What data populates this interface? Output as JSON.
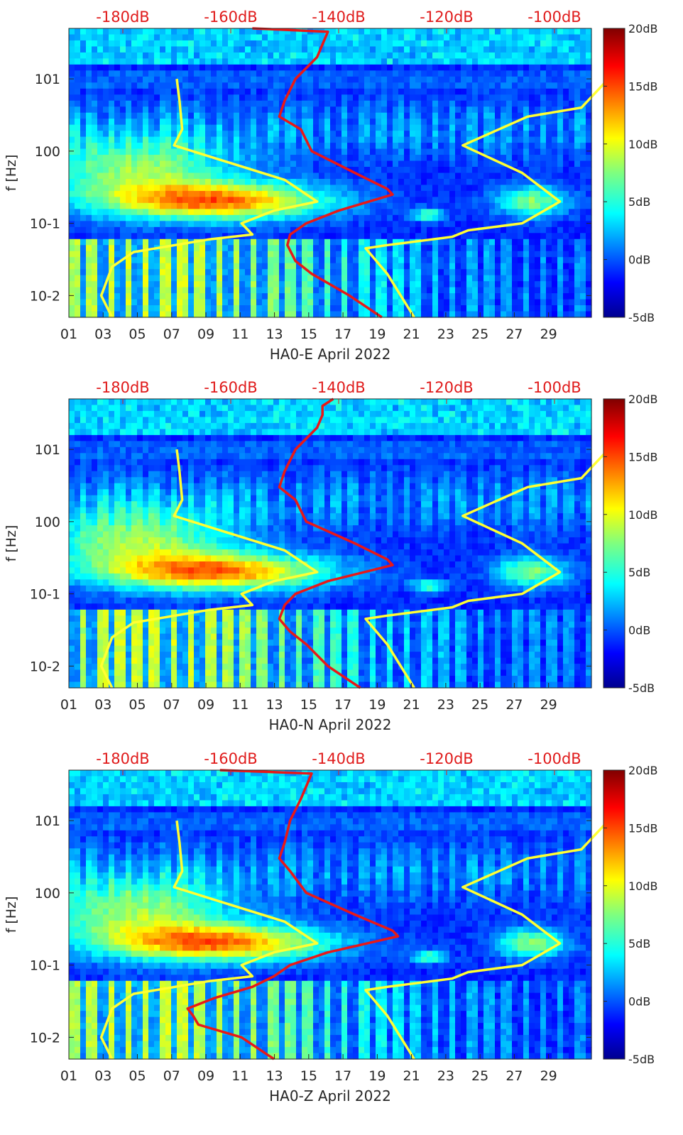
{
  "chart_data": [
    {
      "type": "heatmap",
      "xlabel": "HA0-E April 2022",
      "ylabel": "f [Hz]",
      "x_ticks": [
        "01",
        "03",
        "05",
        "07",
        "09",
        "11",
        "13",
        "15",
        "17",
        "19",
        "21",
        "23",
        "25",
        "27",
        "29"
      ],
      "y_ticks": [
        "10-2",
        "10-1",
        "100",
        "101"
      ],
      "top_axis_ticks": [
        "-180dB",
        "-160dB",
        "-140dB",
        "-120dB",
        "-100dB"
      ],
      "colorbar_ticks": [
        "20dB",
        "15dB",
        "10dB",
        "5dB",
        "0dB",
        "-5dB"
      ],
      "colorbar_range": [
        -5,
        20
      ],
      "ylim_hz": [
        0.005,
        50
      ],
      "red_curve_dB": [
        [
          50,
          -156
        ],
        [
          45,
          -142
        ],
        [
          30,
          -143
        ],
        [
          20,
          -144
        ],
        [
          10,
          -148
        ],
        [
          5,
          -150
        ],
        [
          3,
          -151
        ],
        [
          2,
          -147
        ],
        [
          1,
          -145
        ],
        [
          0.5,
          -137
        ],
        [
          0.3,
          -131
        ],
        [
          0.25,
          -130
        ],
        [
          0.15,
          -140
        ],
        [
          0.1,
          -146
        ],
        [
          0.07,
          -149
        ],
        [
          0.05,
          -149.5
        ],
        [
          0.03,
          -148
        ],
        [
          0.02,
          -145
        ],
        [
          0.01,
          -138
        ],
        [
          0.005,
          -132
        ]
      ],
      "yellow_curves_dB": [
        [
          [
            10,
            -170
          ],
          [
            5,
            -169.5
          ],
          [
            2,
            -169
          ],
          [
            1.2,
            -170.5
          ],
          [
            0.8,
            -163
          ],
          [
            0.4,
            -150
          ],
          [
            0.2,
            -144
          ],
          [
            0.15,
            -152
          ],
          [
            0.1,
            -158
          ],
          [
            0.07,
            -156
          ],
          [
            0.06,
            -164
          ],
          [
            0.04,
            -178
          ],
          [
            0.025,
            -182
          ],
          [
            0.01,
            -184
          ],
          [
            0.005,
            -182
          ]
        ],
        [
          [
            10,
            -90
          ],
          [
            4,
            -95
          ],
          [
            3,
            -105
          ],
          [
            1.2,
            -117
          ],
          [
            0.5,
            -106
          ],
          [
            0.2,
            -99
          ],
          [
            0.1,
            -106
          ],
          [
            0.08,
            -116
          ],
          [
            0.065,
            -119
          ],
          [
            0.05,
            -131
          ],
          [
            0.045,
            -135
          ],
          [
            0.02,
            -131
          ],
          [
            0.005,
            -126
          ]
        ]
      ]
    },
    {
      "type": "heatmap",
      "xlabel": "HA0-N April 2022",
      "ylabel": "f [Hz]",
      "x_ticks": [
        "01",
        "03",
        "05",
        "07",
        "09",
        "11",
        "13",
        "15",
        "17",
        "19",
        "21",
        "23",
        "25",
        "27",
        "29"
      ],
      "y_ticks": [
        "10-2",
        "10-1",
        "100",
        "101"
      ],
      "top_axis_ticks": [
        "-180dB",
        "-160dB",
        "-140dB",
        "-120dB",
        "-100dB"
      ],
      "colorbar_ticks": [
        "20dB",
        "15dB",
        "10dB",
        "5dB",
        "0dB",
        "-5dB"
      ],
      "colorbar_range": [
        -5,
        20
      ],
      "ylim_hz": [
        0.005,
        50
      ],
      "red_curve_dB": [
        [
          50,
          -141
        ],
        [
          40,
          -143
        ],
        [
          30,
          -143
        ],
        [
          20,
          -144
        ],
        [
          10,
          -148
        ],
        [
          5,
          -150
        ],
        [
          3,
          -151
        ],
        [
          2,
          -148
        ],
        [
          1,
          -146
        ],
        [
          0.5,
          -137
        ],
        [
          0.3,
          -131
        ],
        [
          0.25,
          -130
        ],
        [
          0.15,
          -142
        ],
        [
          0.1,
          -148
        ],
        [
          0.07,
          -150
        ],
        [
          0.045,
          -151
        ],
        [
          0.03,
          -149
        ],
        [
          0.02,
          -146
        ],
        [
          0.01,
          -142
        ],
        [
          0.005,
          -136
        ]
      ],
      "yellow_curves_dB": [
        [
          [
            10,
            -170
          ],
          [
            5,
            -169.5
          ],
          [
            2,
            -169
          ],
          [
            1.2,
            -170.5
          ],
          [
            0.8,
            -163
          ],
          [
            0.4,
            -150
          ],
          [
            0.2,
            -144
          ],
          [
            0.15,
            -152
          ],
          [
            0.1,
            -158
          ],
          [
            0.07,
            -156
          ],
          [
            0.06,
            -164
          ],
          [
            0.04,
            -178
          ],
          [
            0.025,
            -182
          ],
          [
            0.01,
            -184
          ],
          [
            0.005,
            -182
          ]
        ],
        [
          [
            10,
            -90
          ],
          [
            4,
            -95
          ],
          [
            3,
            -105
          ],
          [
            1.2,
            -117
          ],
          [
            0.5,
            -106
          ],
          [
            0.2,
            -99
          ],
          [
            0.1,
            -106
          ],
          [
            0.08,
            -116
          ],
          [
            0.065,
            -119
          ],
          [
            0.05,
            -131
          ],
          [
            0.045,
            -135
          ],
          [
            0.02,
            -131
          ],
          [
            0.005,
            -126
          ]
        ]
      ]
    },
    {
      "type": "heatmap",
      "xlabel": "HA0-Z April 2022",
      "ylabel": "f [Hz]",
      "x_ticks": [
        "01",
        "03",
        "05",
        "07",
        "09",
        "11",
        "13",
        "15",
        "17",
        "19",
        "21",
        "23",
        "25",
        "27",
        "29"
      ],
      "y_ticks": [
        "10-2",
        "10-1",
        "100",
        "101"
      ],
      "top_axis_ticks": [
        "-180dB",
        "-160dB",
        "-140dB",
        "-120dB",
        "-100dB"
      ],
      "colorbar_ticks": [
        "20dB",
        "15dB",
        "10dB",
        "5dB",
        "0dB",
        "-5dB"
      ],
      "colorbar_range": [
        -5,
        20
      ],
      "ylim_hz": [
        0.005,
        50
      ],
      "red_curve_dB": [
        [
          50,
          -162
        ],
        [
          45,
          -145
        ],
        [
          30,
          -146
        ],
        [
          20,
          -147
        ],
        [
          10,
          -149
        ],
        [
          5,
          -150
        ],
        [
          3,
          -151
        ],
        [
          2,
          -149
        ],
        [
          1,
          -146
        ],
        [
          0.5,
          -137
        ],
        [
          0.3,
          -130
        ],
        [
          0.25,
          -129
        ],
        [
          0.15,
          -142
        ],
        [
          0.1,
          -149
        ],
        [
          0.07,
          -152
        ],
        [
          0.05,
          -156
        ],
        [
          0.035,
          -163
        ],
        [
          0.025,
          -168
        ],
        [
          0.02,
          -167
        ],
        [
          0.015,
          -166
        ],
        [
          0.01,
          -158
        ],
        [
          0.005,
          -152
        ]
      ],
      "yellow_curves_dB": [
        [
          [
            10,
            -170
          ],
          [
            5,
            -169.5
          ],
          [
            2,
            -169
          ],
          [
            1.2,
            -170.5
          ],
          [
            0.8,
            -163
          ],
          [
            0.4,
            -150
          ],
          [
            0.2,
            -144
          ],
          [
            0.15,
            -152
          ],
          [
            0.1,
            -158
          ],
          [
            0.07,
            -156
          ],
          [
            0.06,
            -164
          ],
          [
            0.04,
            -178
          ],
          [
            0.025,
            -182
          ],
          [
            0.01,
            -184
          ],
          [
            0.005,
            -182
          ]
        ],
        [
          [
            10,
            -90
          ],
          [
            4,
            -95
          ],
          [
            3,
            -105
          ],
          [
            1.2,
            -117
          ],
          [
            0.5,
            -106
          ],
          [
            0.2,
            -99
          ],
          [
            0.1,
            -106
          ],
          [
            0.08,
            -116
          ],
          [
            0.065,
            -119
          ],
          [
            0.05,
            -131
          ],
          [
            0.045,
            -135
          ],
          [
            0.02,
            -131
          ],
          [
            0.005,
            -126
          ]
        ]
      ]
    }
  ]
}
